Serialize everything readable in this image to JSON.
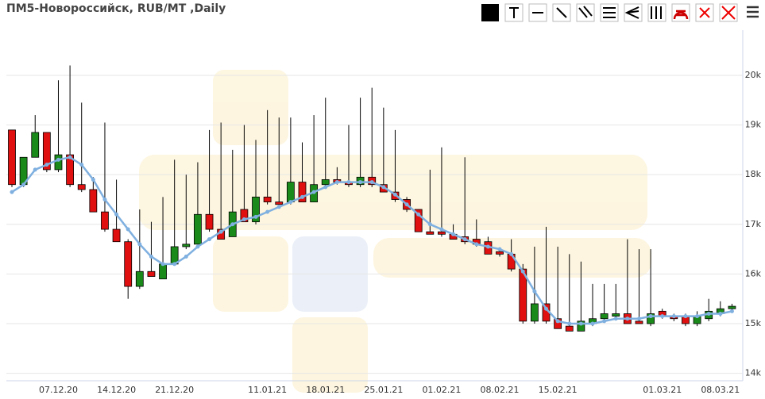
{
  "chart_data": {
    "type": "candlestick",
    "title": "ПМ5-Новороссийск, RUB/MT ,Daily",
    "categories": [
      null,
      null,
      null,
      null,
      "07.12.20",
      null,
      null,
      null,
      null,
      "14.12.20",
      null,
      null,
      null,
      null,
      "21.12.20",
      null,
      null,
      null,
      null,
      null,
      null,
      null,
      "11.01.21",
      null,
      null,
      null,
      null,
      "18.01.21",
      null,
      null,
      null,
      null,
      "25.01.21",
      null,
      null,
      null,
      null,
      "01.02.21",
      null,
      null,
      null,
      null,
      "08.02.21",
      null,
      null,
      null,
      null,
      "15.02.21",
      null,
      null,
      null,
      null,
      null,
      null,
      null,
      null,
      "01.03.21",
      null,
      null,
      null,
      null,
      "08.03.21",
      null
    ],
    "open": [
      18900,
      17800,
      18350,
      18850,
      18100,
      18400,
      17800,
      17700,
      17250,
      16900,
      16650,
      15750,
      16050,
      15900,
      16200,
      16550,
      16600,
      17200,
      16900,
      16750,
      17300,
      17050,
      17550,
      17450,
      17450,
      17850,
      17450,
      17800,
      17900,
      17850,
      17800,
      17950,
      17800,
      17650,
      17500,
      17300,
      16850,
      16850,
      16800,
      16750,
      16700,
      16650,
      16450,
      16400,
      16100,
      15050,
      15400,
      15100,
      14950,
      14850,
      15000,
      15100,
      15150,
      15200,
      15050,
      15000,
      15250,
      15150,
      15150,
      15000,
      15100,
      15200,
      15300
    ],
    "high": [
      18900,
      18350,
      19200,
      18850,
      19900,
      20200,
      19450,
      17950,
      19050,
      17900,
      16700,
      17300,
      17050,
      17550,
      18300,
      18000,
      18250,
      18900,
      19050,
      18500,
      19000,
      18700,
      19300,
      19150,
      19150,
      18650,
      19200,
      19550,
      18150,
      19000,
      19550,
      19750,
      19350,
      18900,
      17550,
      17300,
      18100,
      18550,
      17000,
      18350,
      17100,
      16750,
      16500,
      16700,
      16200,
      16550,
      16950,
      16550,
      16400,
      16250,
      15800,
      15800,
      15800,
      16700,
      16500,
      16500,
      15300,
      15200,
      15200,
      15250,
      15500,
      15450,
      15400
    ],
    "low": [
      17750,
      17750,
      18350,
      18050,
      18050,
      17750,
      17650,
      17250,
      16850,
      16650,
      15500,
      15700,
      15950,
      15900,
      16200,
      16500,
      16600,
      16850,
      16700,
      16750,
      17050,
      17000,
      17400,
      17400,
      17400,
      17450,
      17450,
      17750,
      17800,
      17750,
      17750,
      17750,
      17650,
      17450,
      17250,
      16850,
      16800,
      16750,
      16700,
      16600,
      16550,
      16400,
      16350,
      16050,
      15000,
      15000,
      15000,
      14900,
      14850,
      14850,
      14950,
      15050,
      15100,
      15000,
      15000,
      14950,
      15100,
      15050,
      14950,
      14950,
      15050,
      15150,
      15250
    ],
    "close": [
      17800,
      18350,
      18850,
      18100,
      18400,
      17800,
      17700,
      17250,
      16900,
      16650,
      15750,
      16050,
      15950,
      16200,
      16550,
      16600,
      17200,
      16900,
      16700,
      17250,
      17050,
      17550,
      17450,
      17400,
      17850,
      17450,
      17800,
      17900,
      17850,
      17800,
      17950,
      17800,
      17650,
      17500,
      17300,
      16850,
      16800,
      16800,
      16700,
      16650,
      16600,
      16400,
      16400,
      16100,
      15050,
      15400,
      15050,
      14900,
      14850,
      15050,
      15100,
      15200,
      15200,
      15000,
      15000,
      15200,
      15150,
      15100,
      15000,
      15150,
      15250,
      15300,
      15350
    ],
    "up_color": "#1a8a1a",
    "down_color": "#e01010",
    "line_color": "#7fb0e0",
    "line_values": [
      17650,
      17800,
      18100,
      18200,
      18300,
      18350,
      18200,
      17900,
      17500,
      17200,
      16900,
      16600,
      16350,
      16200,
      16200,
      16350,
      16550,
      16700,
      16850,
      17000,
      17100,
      17150,
      17250,
      17350,
      17450,
      17550,
      17650,
      17750,
      17850,
      17850,
      17850,
      17850,
      17750,
      17600,
      17400,
      17200,
      17000,
      16900,
      16800,
      16700,
      16600,
      16550,
      16500,
      16400,
      16050,
      15650,
      15300,
      15050,
      15000,
      15000,
      15000,
      15050,
      15100,
      15100,
      15100,
      15150,
      15150,
      15150,
      15150,
      15150,
      15200,
      15200,
      15250
    ],
    "ylim": [
      13850,
      20910
    ],
    "yticks": [
      {
        "value": 14000,
        "label": "14k"
      },
      {
        "value": 15000,
        "label": "15k"
      },
      {
        "value": 16000,
        "label": "16k"
      },
      {
        "value": 17000,
        "label": "17k"
      },
      {
        "value": 18000,
        "label": "18k"
      },
      {
        "value": 19000,
        "label": "19k"
      },
      {
        "value": 20000,
        "label": "20k"
      }
    ],
    "grid": true
  }
}
